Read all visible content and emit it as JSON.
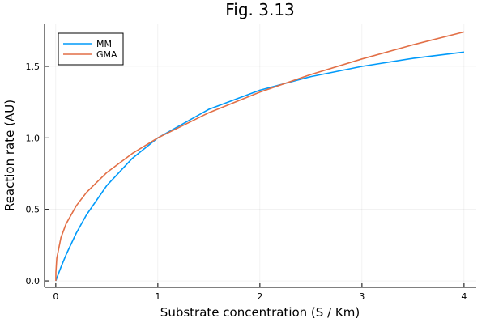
{
  "chart_data": {
    "type": "line",
    "title": "Fig. 3.13",
    "xlabel": "Substrate concentration (S / Km)",
    "ylabel": "Reaction rate (AU)",
    "xlim": [
      -0.11,
      4.12
    ],
    "ylim": [
      -0.045,
      1.794
    ],
    "xticks": [
      0,
      1,
      2,
      3,
      4
    ],
    "xtick_labels": [
      "0",
      "1",
      "2",
      "3",
      "4"
    ],
    "yticks": [
      0,
      0.5,
      1,
      1.5
    ],
    "ytick_labels": [
      "0.0",
      "0.5",
      "1.0",
      "1.5"
    ],
    "grid": true,
    "legend_position": "top-left",
    "x": [
      0,
      0.001,
      0.01,
      0.05,
      0.1,
      0.2,
      0.3,
      0.5,
      0.75,
      1,
      1.5,
      2,
      2.5,
      3,
      3.5,
      4
    ],
    "series": [
      {
        "name": "MM",
        "color": "#009af9",
        "values": [
          0,
          0.002,
          0.0198,
          0.0952,
          0.1818,
          0.3333,
          0.4615,
          0.6667,
          0.8571,
          1,
          1.2,
          1.3333,
          1.4286,
          1.5,
          1.5556,
          1.6
        ]
      },
      {
        "name": "GMA",
        "color": "#e26f46",
        "values": [
          0,
          0.063,
          0.158,
          0.302,
          0.398,
          0.525,
          0.618,
          0.758,
          0.891,
          1,
          1.176,
          1.32,
          1.443,
          1.552,
          1.651,
          1.741
        ]
      }
    ]
  }
}
